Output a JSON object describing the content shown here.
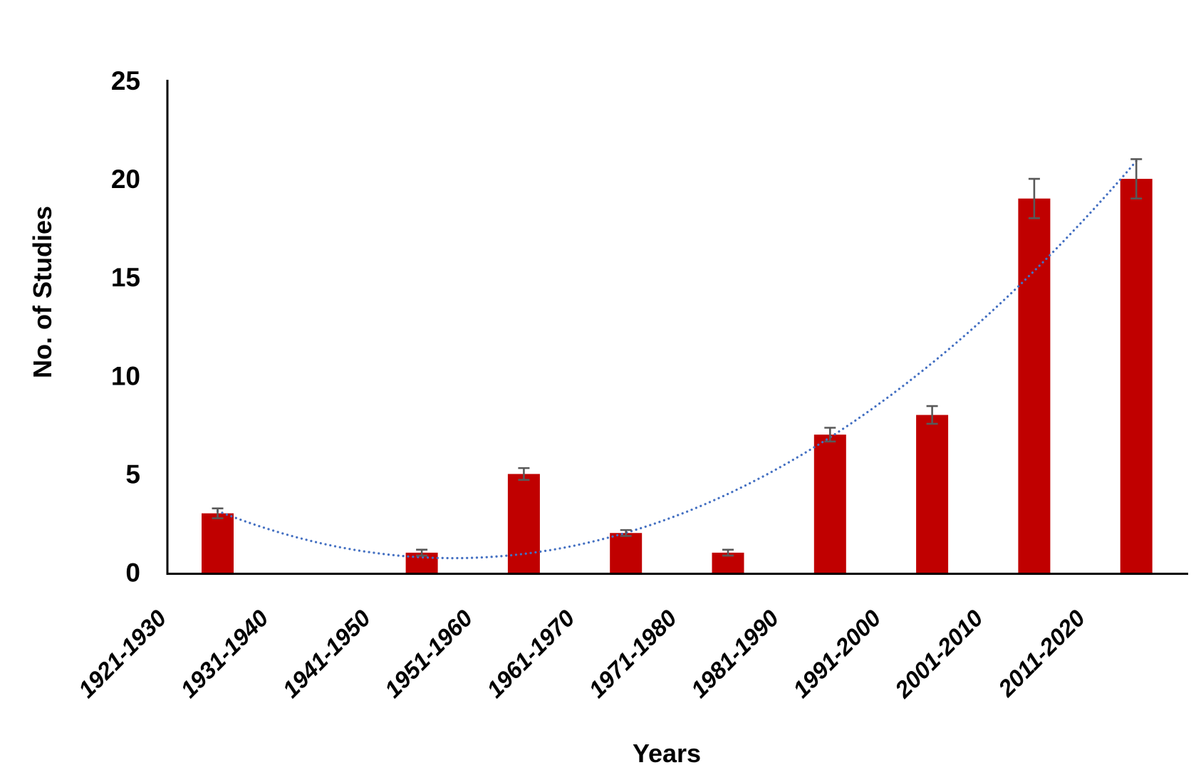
{
  "chart_data": {
    "type": "bar",
    "title": "",
    "xlabel": "Years",
    "ylabel": "No. of Studies",
    "categories": [
      "1921-1930",
      "1931-1940",
      "1941-1950",
      "1951-1960",
      "1961-1970",
      "1971-1980",
      "1981-1990",
      "1991-2000",
      "2001-2010",
      "2011-2020"
    ],
    "values": [
      3,
      0,
      1,
      5,
      2,
      1,
      7,
      8,
      19,
      20
    ],
    "errors": [
      0.25,
      0,
      0.15,
      0.3,
      0.15,
      0.15,
      0.35,
      0.45,
      1.0,
      1.0
    ],
    "y_ticks": [
      0,
      5,
      10,
      15,
      20,
      25
    ],
    "ylim": [
      0,
      25
    ],
    "grid": false,
    "legend": null,
    "bar_color": "#C00000",
    "error_bar_color": "#595959",
    "axis_color": "#000000",
    "label_color": "#000000",
    "trendline": {
      "type": "polynomial",
      "order": 2,
      "coefficients": {
        "a": 0.4505,
        "b": -2.98,
        "c": 5.65
      },
      "domain_categories": [
        1,
        10
      ],
      "color": "#4470C2",
      "style": "dotted"
    }
  }
}
